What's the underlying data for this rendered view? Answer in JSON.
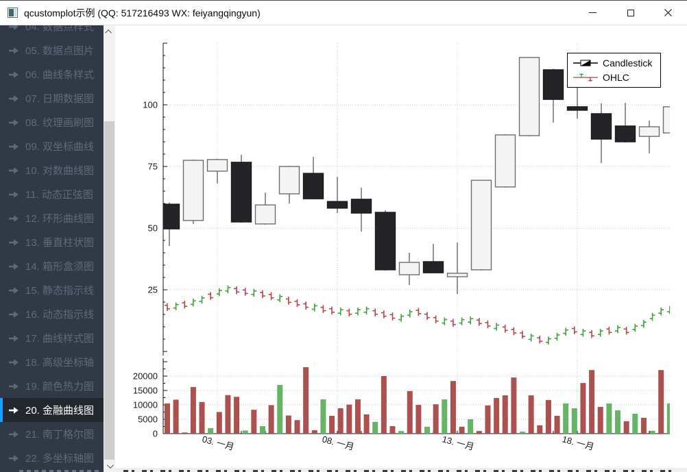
{
  "window": {
    "title": "qcustomplot示例 (QQ: 517216493 WX: feiyangqingyun)"
  },
  "icons": {
    "app": "app-thumbnail",
    "minimize": "minimize-line",
    "maximize": "maximize-square",
    "close": "close-x",
    "sidebar_arrow": "arrow-right",
    "scroll_up": "chevron-up",
    "scroll_down": "chevron-down"
  },
  "sidebar": {
    "accent_color": "#1e9fff",
    "selected_index": 16,
    "items": [
      {
        "label": "04. 数据点样式"
      },
      {
        "label": "05. 数据点图片"
      },
      {
        "label": "06. 曲线条样式"
      },
      {
        "label": "07. 日期数据图"
      },
      {
        "label": "08. 纹理画刷图"
      },
      {
        "label": "09. 双坐标曲线"
      },
      {
        "label": "10. 对数曲线图"
      },
      {
        "label": "11. 动态正弦图"
      },
      {
        "label": "12. 环形曲线图"
      },
      {
        "label": "13. 垂直柱状图"
      },
      {
        "label": "14. 箱形盒须图"
      },
      {
        "label": "15. 静态指示线"
      },
      {
        "label": "16. 动态指示线"
      },
      {
        "label": "17. 曲线样式图"
      },
      {
        "label": "18. 高级坐标轴"
      },
      {
        "label": "19. 颜色热力图"
      },
      {
        "label": "20. 金融曲线图"
      },
      {
        "label": "21. 南丁格尔图"
      },
      {
        "label": "22. 多坐标轴图"
      }
    ]
  },
  "legend": {
    "items": [
      "Candlestick",
      "OHLC"
    ]
  },
  "chart_data": {
    "type": "candlestick",
    "title": "",
    "legend_position": "top-right",
    "grid": true,
    "main_axis": {
      "ylim": [
        -1.5,
        125
      ],
      "yticks": [
        25,
        50,
        75,
        100
      ],
      "xlim_days": [
        0.743,
        21.85
      ]
    },
    "volume_axis": {
      "ylim": [
        0,
        26000
      ],
      "yticks": [
        0,
        5000,
        10000,
        15000,
        20000
      ]
    },
    "xticks": [
      {
        "day": 3,
        "label": "03. 一月"
      },
      {
        "day": 8,
        "label": "08. 一月"
      },
      {
        "day": 13,
        "label": "13. 一月"
      },
      {
        "day": 18,
        "label": "18. 一月"
      }
    ],
    "candles": [
      [
        1,
        59.7,
        60.4,
        42.8,
        49.7
      ],
      [
        2,
        53.1,
        77.8,
        51.7,
        77.5
      ],
      [
        3,
        73.1,
        78.1,
        68.1,
        77.8
      ],
      [
        4,
        76.7,
        79.7,
        52.2,
        52.5
      ],
      [
        5,
        51.7,
        64.4,
        51.4,
        59.4
      ],
      [
        6,
        63.9,
        75.3,
        60.0,
        75.0
      ],
      [
        7,
        72.2,
        78.9,
        61.7,
        61.9
      ],
      [
        8,
        60.8,
        70.8,
        56.1,
        58.1
      ],
      [
        9,
        61.7,
        66.4,
        48.6,
        56.1
      ],
      [
        10,
        56.4,
        57.2,
        32.8,
        33.1
      ],
      [
        11,
        31.1,
        40.0,
        26.9,
        36.1
      ],
      [
        12,
        36.4,
        43.6,
        31.7,
        31.9
      ],
      [
        13,
        30.3,
        44.2,
        23.3,
        31.7
      ],
      [
        14,
        33.1,
        69.6,
        32.8,
        69.4
      ],
      [
        15,
        66.7,
        88.1,
        66.4,
        87.8
      ],
      [
        16,
        87.5,
        119.4,
        87.2,
        119.2
      ],
      [
        17,
        114.2,
        114.6,
        92.8,
        102.2
      ],
      [
        18,
        99.2,
        109.0,
        94.4,
        97.8
      ],
      [
        19,
        96.4,
        100.6,
        76.4,
        86.1
      ],
      [
        20,
        91.4,
        100.8,
        84.7,
        85.0
      ],
      [
        21,
        87.2,
        93.6,
        80.3,
        91.1
      ],
      [
        22,
        88.6,
        99.7,
        88.3,
        99.2
      ]
    ],
    "ohlc": {
      "x_start": 0.914,
      "x_step": 0.361,
      "bar_half": 1.6,
      "tick_delta": 0.7,
      "mids": [
        18.0,
        18.3,
        19.0,
        19.8,
        21.0,
        22.5,
        24.0,
        25.2,
        24.8,
        24.2,
        23.8,
        23.2,
        22.4,
        21.6,
        20.6,
        19.6,
        18.6,
        17.8,
        17.2,
        16.6,
        16.2,
        15.8,
        16.2,
        16.6,
        15.8,
        15.0,
        14.2,
        13.6,
        15.4,
        16.0,
        14.4,
        13.0,
        12.2,
        11.6,
        12.2,
        12.6,
        12.0,
        11.0,
        10.0,
        9.2,
        8.2,
        6.8,
        5.6,
        4.8,
        4.4,
        6.0,
        8.0,
        8.6,
        7.6,
        7.0,
        7.6,
        8.4,
        9.0,
        8.4,
        9.6,
        11.2,
        14.0,
        16.2,
        16.8
      ],
      "dirs": [
        0,
        1,
        0,
        1,
        1,
        0,
        1,
        1,
        0,
        0,
        1,
        0,
        0,
        1,
        0,
        0,
        0,
        1,
        0,
        0,
        1,
        0,
        1,
        1,
        0,
        0,
        0,
        1,
        1,
        0,
        0,
        0,
        1,
        0,
        1,
        1,
        0,
        0,
        1,
        0,
        0,
        0,
        1,
        0,
        1,
        1,
        1,
        0,
        1,
        0,
        1,
        0,
        1,
        0,
        1,
        1,
        1,
        1,
        1
      ]
    },
    "volume": {
      "x_start": 0.914,
      "x_step": 0.361,
      "values": [
        10500,
        11800,
        400,
        16200,
        11000,
        1900,
        7500,
        13400,
        12800,
        1100,
        8300,
        2600,
        9900,
        16900,
        6300,
        4700,
        23100,
        1200,
        11900,
        6200,
        8800,
        10100,
        11900,
        6700,
        4100,
        20000,
        2600,
        900,
        14800,
        10000,
        2400,
        10200,
        11900,
        18300,
        2400,
        5000,
        900,
        9800,
        12400,
        13300,
        19500,
        700,
        13300,
        2900,
        11700,
        6200,
        10500,
        8800,
        17600,
        22100,
        9300,
        10500,
        8100,
        4300,
        6900,
        5500,
        1000,
        22100,
        10500
      ],
      "dirs": [
        0,
        0,
        0,
        0,
        0,
        1,
        0,
        0,
        0,
        1,
        0,
        1,
        0,
        1,
        0,
        0,
        0,
        0,
        1,
        0,
        0,
        0,
        0,
        0,
        1,
        0,
        0,
        1,
        0,
        0,
        1,
        0,
        1,
        0,
        0,
        1,
        0,
        0,
        0,
        0,
        0,
        1,
        0,
        0,
        0,
        0,
        1,
        1,
        0,
        0,
        0,
        1,
        1,
        0,
        1,
        0,
        1,
        0,
        1
      ]
    },
    "colors": {
      "up_fill": "#f4f4f4",
      "up_stroke": "#6e6e6e",
      "down_fill": "#242428",
      "down_stroke": "#1a1a1c",
      "wick": "#2a2a2a",
      "ohlc_up": "#3da23d",
      "ohlc_down": "#b24848",
      "vol_up": "#67b469",
      "vol_down": "#ab5150",
      "grid": "#cccccc",
      "axis": "#111111",
      "label": "#1a1a1a"
    }
  }
}
